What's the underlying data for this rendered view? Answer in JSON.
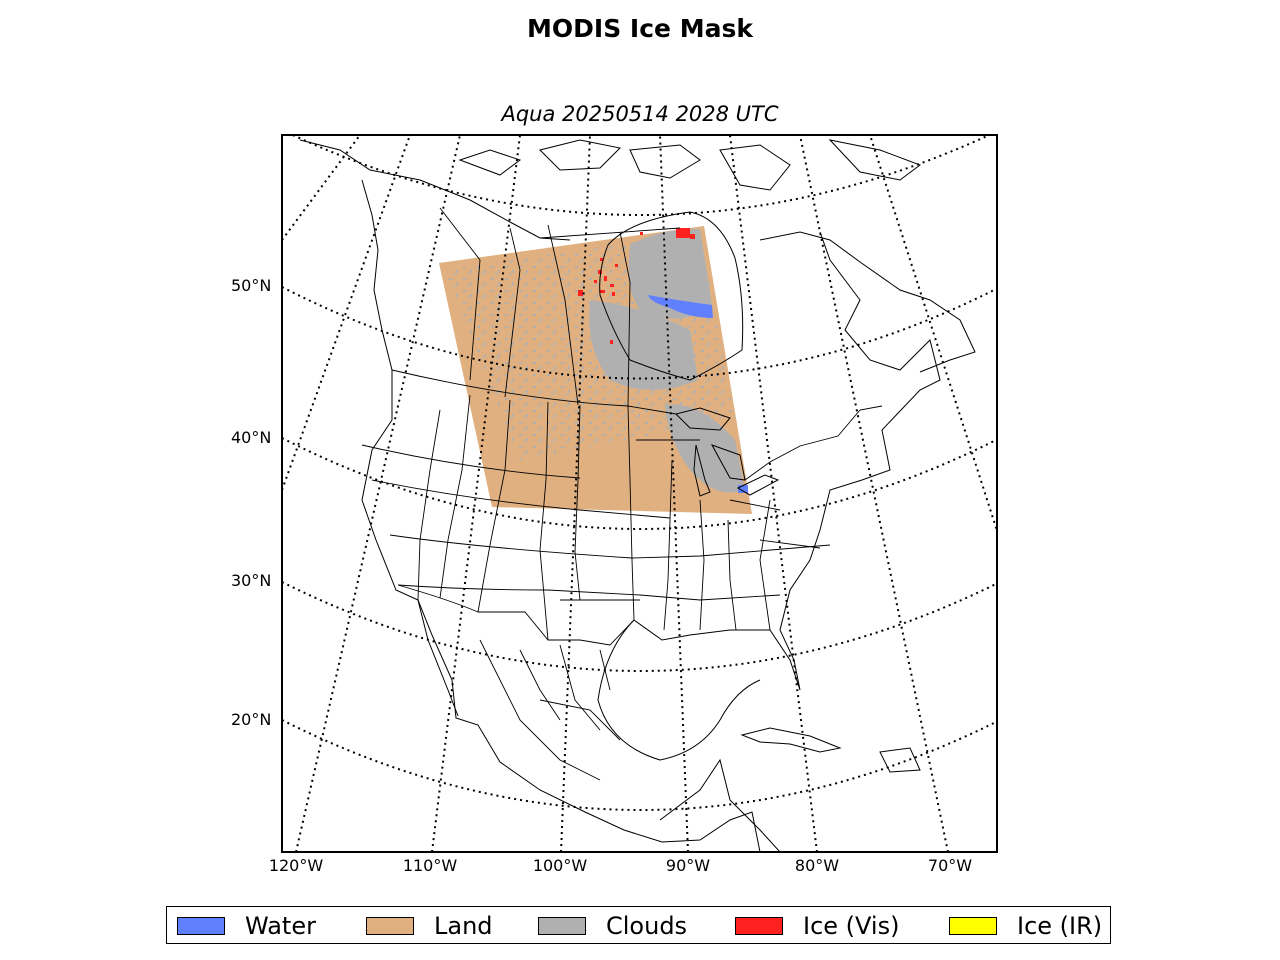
{
  "title": "MODIS Ice Mask",
  "subtitle": "Aqua 20250514 2028 UTC",
  "lat_labels": [
    {
      "text": "50°N",
      "lat": 50
    },
    {
      "text": "40°N",
      "lat": 40
    },
    {
      "text": "30°N",
      "lat": 30
    },
    {
      "text": "20°N",
      "lat": 20
    }
  ],
  "lon_labels": [
    {
      "text": "120°W",
      "lon": -120
    },
    {
      "text": "110°W",
      "lon": -110
    },
    {
      "text": "100°W",
      "lon": -100
    },
    {
      "text": "90°W",
      "lon": -90
    },
    {
      "text": "80°W",
      "lon": -80
    },
    {
      "text": "70°W",
      "lon": -70
    }
  ],
  "legend": [
    {
      "label": "Water",
      "color": "#6080ff"
    },
    {
      "label": "Land",
      "color": "#e0b080"
    },
    {
      "label": "Clouds",
      "color": "#b0b0b0"
    },
    {
      "label": "Ice (Vis)",
      "color": "#ff2020"
    },
    {
      "label": "Ice (IR)",
      "color": "#ffff00"
    }
  ],
  "map": {
    "projection": "lambert conformal conic",
    "graticule": "dotted",
    "boundaries": [
      "coastlines",
      "countries",
      "states/provinces"
    ]
  }
}
